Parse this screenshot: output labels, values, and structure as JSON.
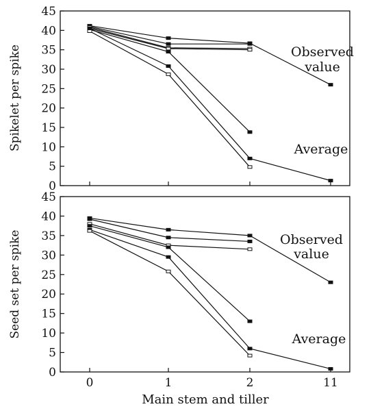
{
  "chart_data": [
    {
      "type": "line",
      "ylabel": "Spikelet per spike",
      "xlabel": "",
      "categories": [
        "0",
        "1",
        "2",
        "11"
      ],
      "ylim": [
        0,
        45
      ],
      "yticks": [
        0,
        5,
        10,
        15,
        20,
        25,
        30,
        35,
        40,
        45
      ],
      "annotations": [
        {
          "lines": [
            "Observed",
            "value"
          ]
        },
        {
          "lines": [
            "Average"
          ]
        }
      ],
      "series": [
        {
          "values": [
            41.2,
            38.0,
            36.7,
            26.0
          ],
          "marker": "filled"
        },
        {
          "values": [
            41.0,
            36.5,
            36.5,
            null
          ],
          "marker": "filled"
        },
        {
          "values": [
            40.8,
            35.5,
            35.3,
            null
          ],
          "marker": "open"
        },
        {
          "values": [
            40.5,
            35.3,
            35.0,
            null
          ],
          "marker": "open"
        },
        {
          "values": [
            40.2,
            34.5,
            13.8,
            null
          ],
          "marker": "filled"
        },
        {
          "values": [
            40.5,
            30.8,
            7.0,
            1.3
          ],
          "marker": "filled"
        },
        {
          "values": [
            39.8,
            28.7,
            4.8,
            null
          ],
          "marker": "open"
        }
      ]
    },
    {
      "type": "line",
      "ylabel": "Seed set per spike",
      "xlabel": "Main stem and tiller",
      "categories": [
        "0",
        "1",
        "2",
        "11"
      ],
      "ylim": [
        0,
        45
      ],
      "yticks": [
        0,
        5,
        10,
        15,
        20,
        25,
        30,
        35,
        40,
        45
      ],
      "annotations": [
        {
          "lines": [
            "Observed",
            "value"
          ]
        },
        {
          "lines": [
            "Average"
          ]
        }
      ],
      "series": [
        {
          "values": [
            39.5,
            36.5,
            35.0,
            23.0
          ],
          "marker": "filled"
        },
        {
          "values": [
            39.2,
            34.5,
            33.5,
            null
          ],
          "marker": "filled"
        },
        {
          "values": [
            38.0,
            32.5,
            31.5,
            null
          ],
          "marker": "open"
        },
        {
          "values": [
            37.5,
            32.0,
            13.0,
            null
          ],
          "marker": "filled"
        },
        {
          "values": [
            36.5,
            29.5,
            6.0,
            0.8
          ],
          "marker": "filled"
        },
        {
          "values": [
            36.2,
            25.8,
            4.2,
            null
          ],
          "marker": "open"
        }
      ]
    }
  ]
}
